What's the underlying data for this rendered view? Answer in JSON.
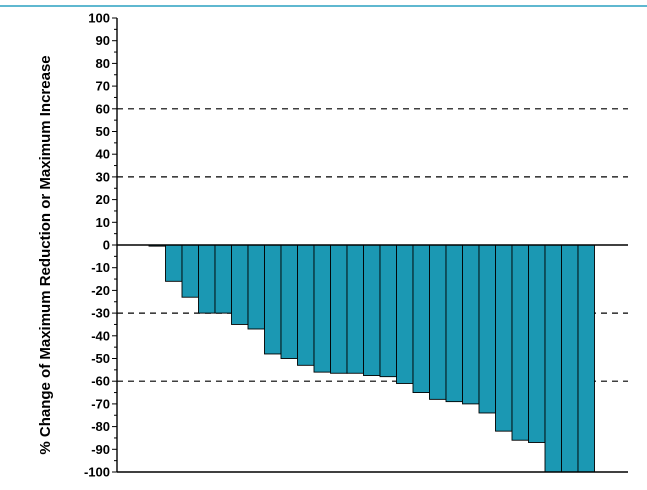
{
  "chart_data": {
    "type": "bar",
    "title": "",
    "xlabel": "",
    "ylabel": "% Change of Maximum Reduction or Maximum Increase",
    "ylim": [
      -100,
      100
    ],
    "y_ticks": [
      100,
      90,
      80,
      70,
      60,
      50,
      40,
      30,
      20,
      10,
      0,
      -10,
      -20,
      -30,
      -40,
      -50,
      -60,
      -70,
      -80,
      -90,
      -100
    ],
    "y_tick_labels": [
      "100",
      "90",
      "80",
      "70",
      "60",
      "50",
      "40",
      "30",
      "20",
      "10",
      "0",
      "-10",
      "-20",
      "-30",
      "-40",
      "-50",
      "-60",
      "-70",
      "-80",
      "-90",
      "-100"
    ],
    "reference_lines": [
      60,
      30,
      -30,
      -60
    ],
    "values": [
      -0.5,
      -16,
      -23,
      -30,
      -30,
      -35,
      -37,
      -48,
      -50,
      -53,
      -56,
      -56.5,
      -56.5,
      -57.5,
      -58,
      -61,
      -65,
      -68,
      -69,
      -70,
      -74,
      -82,
      -86,
      -87,
      -100,
      -100,
      -100
    ],
    "colors": {
      "bar": "#1b98b3",
      "bar_stroke": "#000000",
      "top_rule": "#2aa0c0",
      "axis": "#000000"
    },
    "grid": false,
    "legend": "none"
  }
}
